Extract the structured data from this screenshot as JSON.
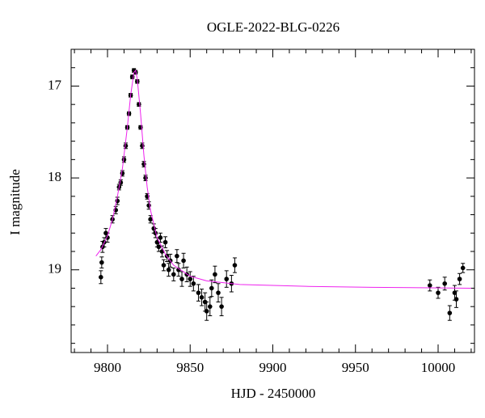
{
  "chart_data": {
    "type": "scatter",
    "title": "OGLE-2022-BLG-0226",
    "x_label": "HJD - 2450000",
    "y_label": "I magnitude",
    "xlim": [
      9778,
      10022
    ],
    "ylim": [
      19.9,
      16.6
    ],
    "xticks": [
      9800,
      9850,
      9900,
      9950,
      10000
    ],
    "yticks": [
      17,
      18,
      19
    ],
    "xminorticks": [
      9780,
      9790,
      9810,
      9820,
      9830,
      9840,
      9860,
      9870,
      9880,
      9890,
      9910,
      9920,
      9930,
      9940,
      9960,
      9970,
      9980,
      9990,
      10010,
      10020
    ],
    "yminorticks": [
      16.6,
      16.8,
      17.2,
      17.4,
      17.6,
      17.8,
      18.2,
      18.4,
      18.6,
      18.8,
      19.2,
      19.4,
      19.6,
      19.8
    ],
    "series": [
      {
        "type": "scatter",
        "color": "#000000",
        "x": [
          9796,
          9796.5,
          9797,
          9798,
          9799,
          9800,
          9803,
          9805,
          9806,
          9807,
          9808,
          9809,
          9810,
          9811,
          9812,
          9813,
          9814,
          9815,
          9816,
          9817,
          9818,
          9819,
          9820,
          9821,
          9822,
          9823,
          9824,
          9825,
          9826,
          9828,
          9829,
          9830,
          9831,
          9832,
          9833,
          9834,
          9835,
          9836,
          9837,
          9838,
          9840,
          9842,
          9843,
          9845,
          9846,
          9848,
          9850,
          9852,
          9855,
          9857,
          9859,
          9860,
          9862,
          9863,
          9865,
          9867,
          9869,
          9872,
          9875,
          9877,
          9995,
          10000,
          10004,
          10007,
          10010,
          10011,
          10013,
          10015
        ],
        "values": [
          19.08,
          18.92,
          18.75,
          18.7,
          18.6,
          18.65,
          18.45,
          18.35,
          18.25,
          18.1,
          18.05,
          17.95,
          17.8,
          17.65,
          17.45,
          17.3,
          17.1,
          16.9,
          16.83,
          16.85,
          16.95,
          17.2,
          17.45,
          17.65,
          17.85,
          18.0,
          18.2,
          18.3,
          18.45,
          18.55,
          18.6,
          18.7,
          18.75,
          18.65,
          18.8,
          18.95,
          18.7,
          18.85,
          19.0,
          18.9,
          19.05,
          18.85,
          19.0,
          19.1,
          18.9,
          19.05,
          19.1,
          19.15,
          19.25,
          19.3,
          19.35,
          19.45,
          19.4,
          19.2,
          19.05,
          19.25,
          19.4,
          19.1,
          19.15,
          18.95,
          19.17,
          19.25,
          19.15,
          19.47,
          19.25,
          19.32,
          19.1,
          18.98
        ],
        "errors": [
          0.07,
          0.06,
          0.06,
          0.05,
          0.05,
          0.05,
          0.04,
          0.04,
          0.04,
          0.03,
          0.03,
          0.03,
          0.03,
          0.03,
          0.02,
          0.02,
          0.02,
          0.02,
          0.02,
          0.02,
          0.02,
          0.02,
          0.02,
          0.03,
          0.03,
          0.03,
          0.03,
          0.04,
          0.04,
          0.05,
          0.05,
          0.05,
          0.05,
          0.05,
          0.06,
          0.06,
          0.06,
          0.06,
          0.07,
          0.07,
          0.07,
          0.07,
          0.07,
          0.08,
          0.08,
          0.08,
          0.08,
          0.08,
          0.09,
          0.09,
          0.1,
          0.1,
          0.1,
          0.09,
          0.09,
          0.1,
          0.1,
          0.09,
          0.09,
          0.08,
          0.06,
          0.06,
          0.07,
          0.08,
          0.08,
          0.09,
          0.06,
          0.05
        ]
      },
      {
        "type": "line",
        "color": "#ee22ee",
        "x": [
          9793,
          9796,
          9800,
          9803,
          9806,
          9809,
          9812,
          9814,
          9816,
          9817,
          9818,
          9820,
          9822,
          9824,
          9826,
          9830,
          9835,
          9840,
          9850,
          9860,
          9880,
          9920,
          9960,
          10020
        ],
        "values": [
          18.85,
          18.78,
          18.63,
          18.45,
          18.2,
          17.9,
          17.45,
          17.1,
          16.85,
          16.83,
          16.92,
          17.3,
          17.75,
          18.1,
          18.35,
          18.65,
          18.83,
          18.95,
          19.07,
          19.12,
          19.16,
          19.18,
          19.19,
          19.2
        ]
      }
    ]
  }
}
